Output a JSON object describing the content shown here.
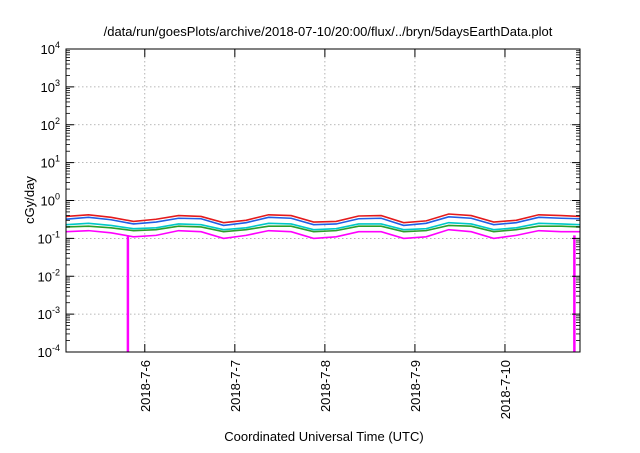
{
  "chart_data": {
    "type": "line",
    "title": "/data/run/goesPlots/archive/2018-07-10/20:00/flux/../bryn/5daysEarthData.plot",
    "xlabel": "Coordinated Universal Time (UTC)",
    "ylabel": "cGy/day",
    "yscale": "log",
    "xlim": [
      "2018-07-05 03:00",
      "2018-07-10 20:00"
    ],
    "ylim": [
      0.0001,
      10000
    ],
    "grid": true,
    "legend": "none",
    "x_ticks": [
      {
        "value": "2018-07-06 00:00",
        "label": "2018-7-6"
      },
      {
        "value": "2018-07-07 00:00",
        "label": "2018-7-7"
      },
      {
        "value": "2018-07-08 00:00",
        "label": "2018-7-8"
      },
      {
        "value": "2018-07-09 00:00",
        "label": "2018-7-9"
      },
      {
        "value": "2018-07-10 00:00",
        "label": "2018-7-10"
      }
    ],
    "y_ticks": [
      {
        "value": 0.0001,
        "base": "10",
        "exp": "-4"
      },
      {
        "value": 0.001,
        "base": "10",
        "exp": "-3"
      },
      {
        "value": 0.01,
        "base": "10",
        "exp": "-2"
      },
      {
        "value": 0.1,
        "base": "10",
        "exp": "-1"
      },
      {
        "value": 1,
        "base": "10",
        "exp": "0"
      },
      {
        "value": 10,
        "base": "10",
        "exp": "1"
      },
      {
        "value": 100,
        "base": "10",
        "exp": "2"
      },
      {
        "value": 1000,
        "base": "10",
        "exp": "3"
      },
      {
        "value": 10000,
        "base": "10",
        "exp": "4"
      }
    ],
    "x": [
      "2018-07-05 03:00",
      "2018-07-05 09:00",
      "2018-07-05 15:00",
      "2018-07-05 21:00",
      "2018-07-06 03:00",
      "2018-07-06 09:00",
      "2018-07-06 15:00",
      "2018-07-06 21:00",
      "2018-07-07 03:00",
      "2018-07-07 09:00",
      "2018-07-07 15:00",
      "2018-07-07 21:00",
      "2018-07-08 03:00",
      "2018-07-08 09:00",
      "2018-07-08 15:00",
      "2018-07-08 21:00",
      "2018-07-09 03:00",
      "2018-07-09 09:00",
      "2018-07-09 15:00",
      "2018-07-09 21:00",
      "2018-07-10 03:00",
      "2018-07-10 09:00",
      "2018-07-10 15:00",
      "2018-07-10 20:00"
    ],
    "series": [
      {
        "color": "#e41a1c",
        "values": [
          0.38,
          0.42,
          0.36,
          0.28,
          0.32,
          0.4,
          0.38,
          0.26,
          0.3,
          0.42,
          0.4,
          0.27,
          0.28,
          0.39,
          0.4,
          0.26,
          0.29,
          0.44,
          0.4,
          0.27,
          0.3,
          0.42,
          0.4,
          0.38
        ]
      },
      {
        "color": "#1f5fe6",
        "values": [
          0.32,
          0.36,
          0.31,
          0.24,
          0.27,
          0.34,
          0.33,
          0.22,
          0.26,
          0.36,
          0.34,
          0.23,
          0.24,
          0.33,
          0.34,
          0.22,
          0.25,
          0.37,
          0.34,
          0.23,
          0.26,
          0.36,
          0.34,
          0.33
        ]
      },
      {
        "color": "#00c8c8",
        "values": [
          0.23,
          0.25,
          0.22,
          0.18,
          0.19,
          0.24,
          0.23,
          0.17,
          0.19,
          0.25,
          0.24,
          0.17,
          0.18,
          0.24,
          0.24,
          0.17,
          0.18,
          0.26,
          0.24,
          0.17,
          0.19,
          0.25,
          0.24,
          0.23
        ]
      },
      {
        "color": "#2aa02a",
        "values": [
          0.2,
          0.21,
          0.19,
          0.16,
          0.17,
          0.21,
          0.2,
          0.15,
          0.17,
          0.21,
          0.21,
          0.15,
          0.16,
          0.21,
          0.21,
          0.15,
          0.16,
          0.22,
          0.21,
          0.15,
          0.17,
          0.21,
          0.21,
          0.2
        ]
      },
      {
        "color": "#ff00ff",
        "values": [
          0.15,
          0.16,
          0.14,
          0.11,
          0.12,
          0.16,
          0.15,
          0.1,
          0.12,
          0.16,
          0.15,
          0.1,
          0.11,
          0.15,
          0.15,
          0.1,
          0.11,
          0.17,
          0.15,
          0.1,
          0.12,
          0.16,
          0.15,
          0.15
        ]
      }
    ],
    "annotations": [
      {
        "series_color": "#ff00ff",
        "at": "2018-07-05 19:30",
        "value": 0.0001
      },
      {
        "series_color": "#ff00ff",
        "at": "2018-07-10 18:30",
        "value": 0.0001
      }
    ]
  }
}
